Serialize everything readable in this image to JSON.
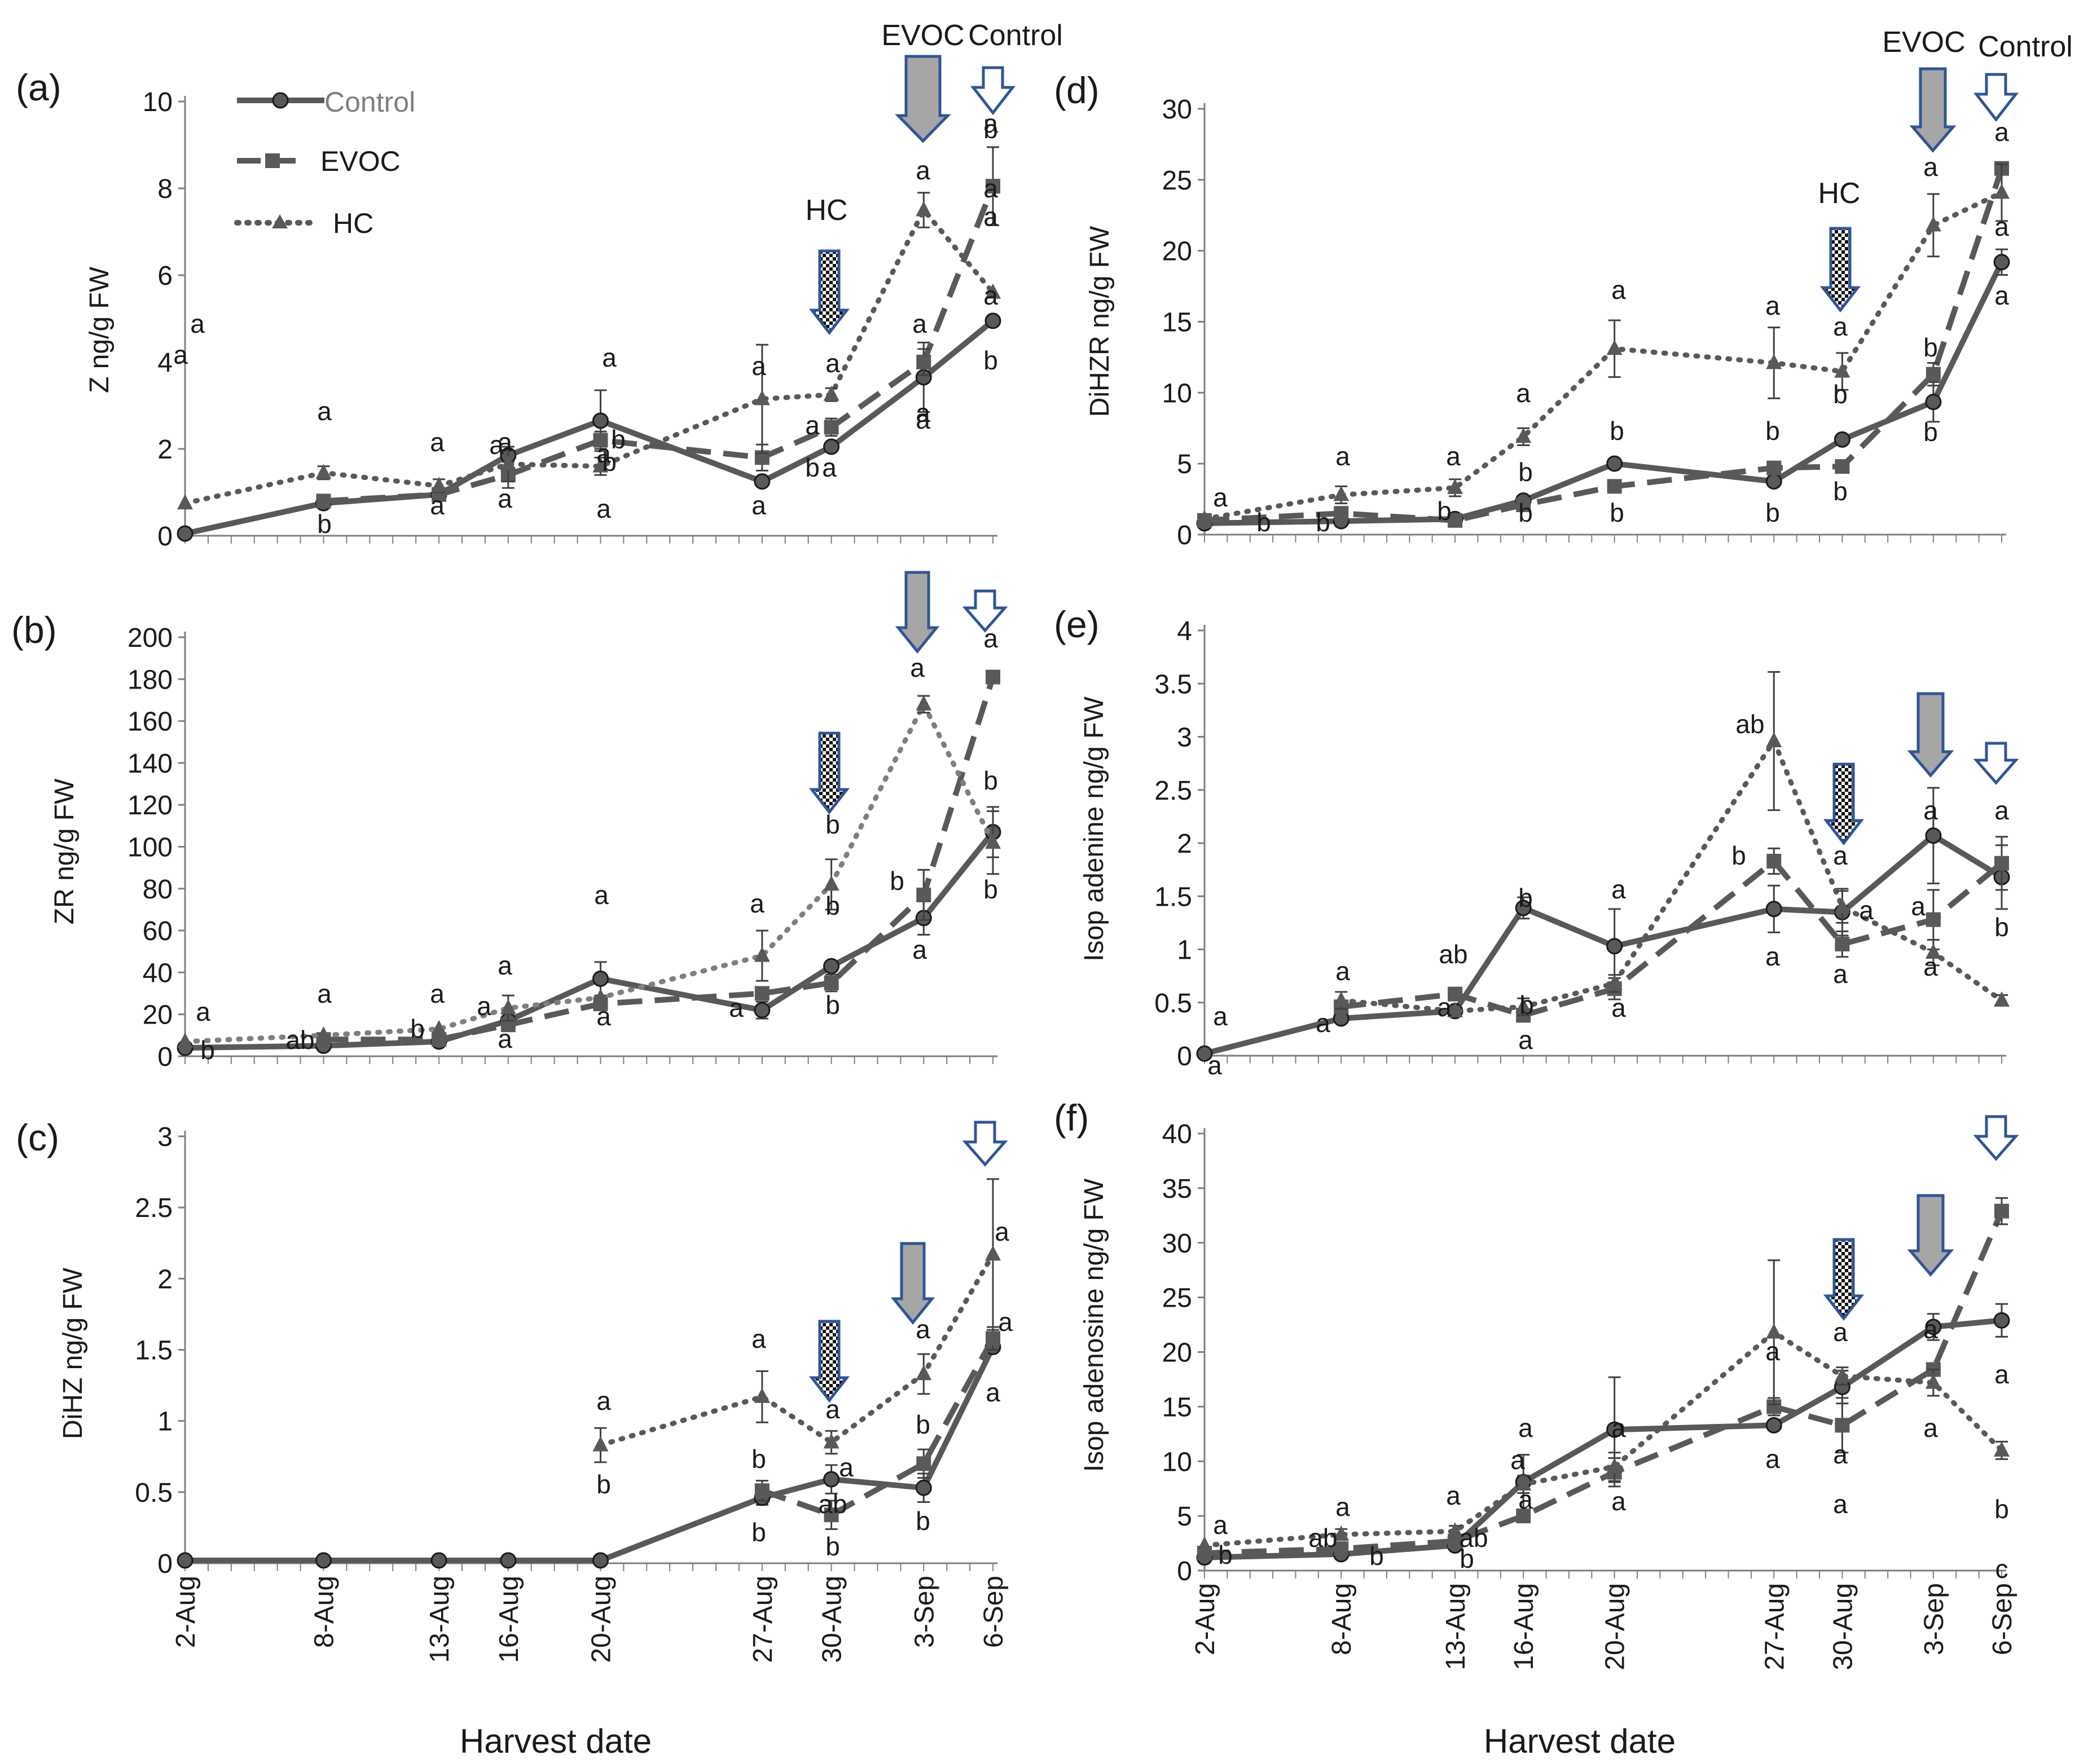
{
  "figure": {
    "colors": {
      "series": "#595959",
      "arrow_outline": "#2f5597",
      "arrow_fill_gray": "#a6a6a6",
      "text": "#1a1a1a"
    },
    "legend": [
      {
        "name": "Control",
        "marker": "circle",
        "dash": "solid"
      },
      {
        "name": "EVOC",
        "marker": "square",
        "dash": "dashed"
      },
      {
        "name": "HC",
        "marker": "triangle",
        "dash": "dotted"
      }
    ],
    "shared_xlabel": "Harvest date",
    "x_categories": [
      "2-Aug",
      "8-Aug",
      "13-Aug",
      "16-Aug",
      "20-Aug",
      "27-Aug",
      "30-Aug",
      "3-Sep",
      "6-Sep"
    ],
    "x_days": [
      0,
      6,
      11,
      14,
      18,
      25,
      28,
      32,
      35
    ]
  },
  "chart_data": [
    {
      "type": "line",
      "panel": "(a)",
      "ylabel": "Z ng/g FW",
      "ylim": [
        0,
        10
      ],
      "yticks": [
        0,
        2,
        4,
        6,
        8,
        10
      ],
      "categories": [
        "2-Aug",
        "8-Aug",
        "13-Aug",
        "16-Aug",
        "20-Aug",
        "27-Aug",
        "30-Aug",
        "3-Sep",
        "6-Sep"
      ],
      "series": [
        {
          "name": "Control",
          "values": [
            0.05,
            0.75,
            0.95,
            1.85,
            2.65,
            1.25,
            2.05,
            3.65,
            4.95
          ],
          "errors": [
            0,
            0,
            0,
            0,
            0.7,
            0,
            0,
            0.8,
            0
          ]
        },
        {
          "name": "EVOC",
          "values": [
            null,
            0.8,
            0.95,
            1.4,
            2.2,
            1.8,
            2.5,
            4.0,
            8.05
          ],
          "errors": [
            0,
            0,
            0,
            0.3,
            0.2,
            0.3,
            0.2,
            0.3,
            0.9
          ]
        },
        {
          "name": "HC",
          "values": [
            0.75,
            1.45,
            1.15,
            1.65,
            1.6,
            3.15,
            3.25,
            7.5,
            5.6
          ],
          "errors": [
            0,
            0.15,
            0.15,
            0.4,
            0.2,
            1.25,
            0.15,
            0.4,
            0
          ]
        }
      ],
      "annotations": [
        "a",
        "a",
        "a",
        "b",
        "a",
        "a",
        "a",
        "a",
        "a",
        "a",
        "a",
        "a",
        "a",
        "a",
        "a",
        "a",
        "a",
        "a",
        "b",
        "b",
        "a",
        "b",
        "a",
        "b",
        "a",
        "b",
        "a",
        "a",
        "a",
        "a"
      ],
      "arrow_labels": [
        "HC",
        "EVOC",
        "Control"
      ]
    },
    {
      "type": "line",
      "panel": "(b)",
      "ylabel": "ZR ng/g FW",
      "ylim": [
        0,
        200
      ],
      "yticks": [
        0,
        20,
        40,
        60,
        80,
        100,
        120,
        140,
        160,
        180,
        200
      ],
      "categories": [
        "2-Aug",
        "8-Aug",
        "13-Aug",
        "16-Aug",
        "20-Aug",
        "27-Aug",
        "30-Aug",
        "3-Sep",
        "6-Sep"
      ],
      "series": [
        {
          "name": "Control",
          "values": [
            4,
            5,
            7,
            17,
            37,
            22,
            43,
            66,
            107
          ],
          "errors": [
            0,
            0,
            0,
            0,
            8,
            4,
            0,
            8,
            12
          ]
        },
        {
          "name": "EVOC",
          "values": [
            null,
            8,
            8,
            15,
            25,
            30,
            35,
            77,
            181
          ],
          "errors": [
            0,
            0,
            0,
            0,
            0,
            0,
            4,
            12,
            0
          ]
        },
        {
          "name": "HC",
          "values": [
            7,
            10,
            13,
            23,
            28,
            48,
            82,
            168,
            102
          ],
          "errors": [
            0,
            0,
            0,
            6,
            0,
            12,
            12,
            4,
            15
          ]
        }
      ],
      "annotations": [
        "a",
        "b",
        "a",
        "ab",
        "a",
        "b",
        "a",
        "a",
        "a",
        "a",
        "a",
        "a",
        "a",
        "b",
        "b",
        "b",
        "a",
        "b",
        "a",
        "a",
        "b",
        "b"
      ]
    },
    {
      "type": "line",
      "panel": "(c)",
      "ylabel": "DiHZ ng/g FW",
      "ylim": [
        0,
        3
      ],
      "yticks": [
        0,
        0.5,
        1,
        1.5,
        2,
        2.5,
        3
      ],
      "categories": [
        "2-Aug",
        "8-Aug",
        "13-Aug",
        "16-Aug",
        "20-Aug",
        "27-Aug",
        "30-Aug",
        "3-Sep",
        "6-Sep"
      ],
      "series": [
        {
          "name": "Control",
          "values": [
            0.02,
            0.02,
            0.02,
            0.02,
            0.02,
            0.46,
            0.59,
            0.53,
            1.52
          ],
          "errors": [
            0,
            0,
            0,
            0,
            0,
            0.05,
            0.1,
            0.1,
            0
          ]
        },
        {
          "name": "EVOC",
          "values": [
            null,
            null,
            null,
            null,
            null,
            0.51,
            0.34,
            0.7,
            1.58
          ],
          "errors": [
            0,
            0,
            0,
            0,
            0,
            0.07,
            0.1,
            0.1,
            0.08
          ]
        },
        {
          "name": "HC",
          "values": [
            null,
            null,
            null,
            null,
            0.83,
            1.17,
            0.85,
            1.33,
            2.17
          ],
          "errors": [
            0,
            0,
            0,
            0,
            0.12,
            0.18,
            0.08,
            0.14,
            0.53
          ]
        }
      ],
      "annotations": [
        "a",
        "b",
        "a",
        "b",
        "b",
        "a",
        "a",
        "ab",
        "b",
        "a",
        "b",
        "b",
        "a",
        "a",
        "a"
      ]
    },
    {
      "type": "line",
      "panel": "(d)",
      "ylabel": "DiHZR ng/g FW",
      "ylim": [
        0,
        30
      ],
      "yticks": [
        0,
        5,
        10,
        15,
        20,
        25,
        30
      ],
      "categories": [
        "2-Aug",
        "8-Aug",
        "13-Aug",
        "16-Aug",
        "20-Aug",
        "27-Aug",
        "30-Aug",
        "3-Sep",
        "6-Sep"
      ],
      "series": [
        {
          "name": "Control",
          "values": [
            0.8,
            0.95,
            1.1,
            2.4,
            5.0,
            3.75,
            6.7,
            9.35,
            19.2
          ],
          "errors": [
            0,
            0,
            0,
            0,
            0,
            0,
            0,
            1.4,
            0.9
          ]
        },
        {
          "name": "EVOC",
          "values": [
            1.0,
            1.5,
            1.0,
            2.1,
            3.4,
            4.7,
            4.8,
            11.3,
            25.8
          ],
          "errors": [
            0,
            0,
            0,
            0,
            0,
            0,
            0,
            0.8,
            0
          ]
        },
        {
          "name": "HC",
          "values": [
            1.1,
            2.8,
            3.3,
            6.9,
            13.1,
            12.1,
            11.5,
            21.8,
            24.1
          ],
          "errors": [
            0,
            0.6,
            0.6,
            0.6,
            2.0,
            2.5,
            1.3,
            2.2,
            2.0
          ]
        }
      ],
      "annotations": [
        "a",
        "b",
        "a",
        "b",
        "a",
        "b",
        "a",
        "b",
        "b",
        "a",
        "b",
        "b",
        "a",
        "b",
        "b",
        "a",
        "b",
        "b",
        "HC",
        "a",
        "b",
        "b",
        "a",
        "a",
        "a",
        "EVOC",
        "Control"
      ]
    },
    {
      "type": "line",
      "panel": "(e)",
      "ylabel": "Isop adenine ng/g FW",
      "ylim": [
        0,
        4
      ],
      "yticks": [
        0,
        0.5,
        1,
        1.5,
        2,
        2.5,
        3,
        3.5,
        4
      ],
      "categories": [
        "2-Aug",
        "8-Aug",
        "13-Aug",
        "16-Aug",
        "20-Aug",
        "27-Aug",
        "30-Aug",
        "3-Sep",
        "6-Sep"
      ],
      "series": [
        {
          "name": "Control",
          "values": [
            0.02,
            0.35,
            0.42,
            1.39,
            1.03,
            1.38,
            1.35,
            2.07,
            1.68
          ],
          "errors": [
            0,
            0,
            0,
            0.1,
            0.35,
            0.22,
            0.22,
            0.45,
            0.3
          ]
        },
        {
          "name": "EVOC",
          "values": [
            null,
            0.46,
            0.58,
            0.38,
            0.63,
            1.83,
            1.05,
            1.28,
            1.81
          ],
          "errors": [
            0,
            0,
            0,
            0,
            0.1,
            0.12,
            0.12,
            0.28,
            0.25
          ]
        },
        {
          "name": "HC",
          "values": [
            null,
            0.52,
            0.42,
            0.46,
            0.68,
            2.96,
            1.4,
            0.97,
            0.52
          ],
          "errors": [
            0,
            0.08,
            0.05,
            0.08,
            0.08,
            0.65,
            0.15,
            0.12,
            0.05
          ]
        }
      ],
      "annotations": [
        "a",
        "a",
        "a",
        "a",
        "ab",
        "a",
        "b",
        "b",
        "a",
        "a",
        "a",
        "ab",
        "b",
        "a",
        "a",
        "a",
        "a",
        "a",
        "a",
        "a",
        "a",
        "b"
      ]
    },
    {
      "type": "line",
      "panel": "(f)",
      "ylabel": "Isop adenosine ng/g FW",
      "ylim": [
        0,
        40
      ],
      "yticks": [
        0,
        5,
        10,
        15,
        20,
        25,
        30,
        35,
        40
      ],
      "categories": [
        "2-Aug",
        "8-Aug",
        "13-Aug",
        "16-Aug",
        "20-Aug",
        "27-Aug",
        "30-Aug",
        "3-Sep",
        "6-Sep"
      ],
      "series": [
        {
          "name": "Control",
          "values": [
            1.2,
            1.5,
            2.3,
            8.1,
            12.9,
            13.3,
            16.8,
            22.3,
            22.9
          ],
          "errors": [
            0,
            0,
            0,
            2.5,
            4.8,
            0,
            1.5,
            1.2,
            1.5
          ]
        },
        {
          "name": "EVOC",
          "values": [
            1.6,
            2.0,
            2.7,
            5.0,
            9.0,
            15.0,
            13.3,
            18.4,
            32.9
          ],
          "errors": [
            0,
            0,
            0,
            0,
            1.3,
            0.8,
            2.5,
            0.5,
            1.2
          ]
        },
        {
          "name": "HC",
          "values": [
            2.3,
            3.3,
            3.6,
            7.9,
            9.5,
            21.8,
            17.8,
            17.2,
            11.0
          ],
          "errors": [
            0,
            0.5,
            0.5,
            0.8,
            1.3,
            6.6,
            0.8,
            1.2,
            0.8
          ]
        }
      ],
      "annotations": [
        "a",
        "b",
        "a",
        "ab",
        "b",
        "a",
        "ab",
        "b",
        "a",
        "a",
        "a",
        "a",
        "a",
        "a",
        "a",
        "a",
        "a",
        "a",
        "a",
        "a",
        "a",
        "b",
        "c"
      ]
    }
  ]
}
